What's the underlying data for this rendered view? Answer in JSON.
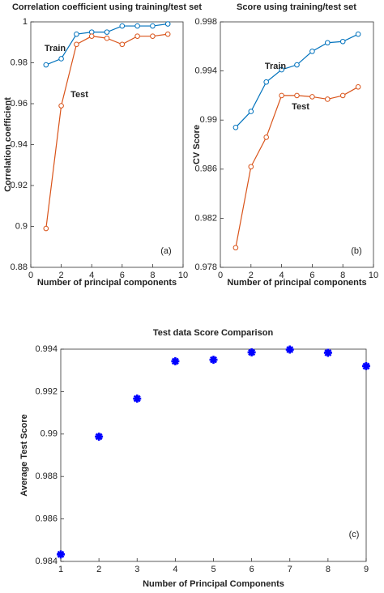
{
  "chart_data": [
    {
      "type": "line",
      "title": "Correlation coefficient using training/test set",
      "x_label": "Number of principal components",
      "y_label": "Correlation coefficient",
      "x": [
        1,
        2,
        3,
        4,
        5,
        6,
        7,
        8,
        9
      ],
      "series": [
        {
          "name": "Train",
          "color": "#0072bd",
          "values": [
            0.979,
            0.982,
            0.994,
            0.995,
            0.995,
            0.998,
            0.998,
            0.998,
            0.999
          ]
        },
        {
          "name": "Test",
          "color": "#d95319",
          "values": [
            0.899,
            0.959,
            0.989,
            0.993,
            0.992,
            0.989,
            0.993,
            0.993,
            0.994
          ]
        }
      ],
      "annotations": [
        "(a)"
      ],
      "xlim": [
        0,
        10
      ],
      "xticks": [
        0,
        2,
        4,
        6,
        8,
        10
      ],
      "ylim": [
        0.88,
        1
      ],
      "yticks": [
        0.88,
        0.9,
        0.92,
        0.94,
        0.96,
        0.98,
        1
      ]
    },
    {
      "type": "line",
      "title": "Score using training/test set",
      "x_label": "Number of principal components",
      "y_label": "CV Score",
      "x": [
        1,
        2,
        3,
        4,
        5,
        6,
        7,
        8,
        9
      ],
      "series": [
        {
          "name": "Train",
          "color": "#0072bd",
          "values": [
            0.9894,
            0.9907,
            0.9931,
            0.9941,
            0.9945,
            0.9956,
            0.9963,
            0.9964,
            0.997
          ]
        },
        {
          "name": "Test",
          "color": "#d95319",
          "values": [
            0.9796,
            0.9862,
            0.9886,
            0.992,
            0.992,
            0.9919,
            0.9917,
            0.992,
            0.9927
          ]
        }
      ],
      "annotations": [
        "(b)"
      ],
      "xlim": [
        0,
        10
      ],
      "xticks": [
        0,
        2,
        4,
        6,
        8,
        10
      ],
      "ylim": [
        0.978,
        0.998
      ],
      "yticks": [
        0.978,
        0.982,
        0.986,
        0.99,
        0.994,
        0.998
      ]
    },
    {
      "type": "scatter",
      "title": "Test data Score Comparison",
      "x_label": "Number of Principal Components",
      "y_label": "Average Test Score",
      "x": [
        1,
        2,
        3,
        4,
        5,
        6,
        7,
        8,
        9
      ],
      "values": [
        0.98433,
        0.98988,
        0.99167,
        0.99343,
        0.9935,
        0.99385,
        0.99398,
        0.99383,
        0.9932
      ],
      "color": "#0000ff",
      "annotations": [
        "(c)"
      ],
      "xlim": [
        1,
        9
      ],
      "xticks": [
        1,
        2,
        3,
        4,
        5,
        6,
        7,
        8,
        9
      ],
      "ylim": [
        0.984,
        0.994
      ],
      "yticks": [
        0.984,
        0.986,
        0.988,
        0.99,
        0.992,
        0.994
      ]
    }
  ]
}
